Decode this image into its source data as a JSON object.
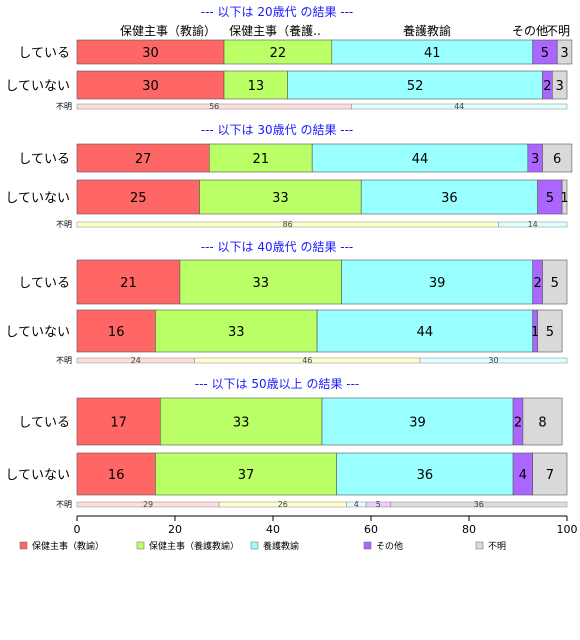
{
  "chart_data": {
    "type": "bar",
    "orientation": "horizontal",
    "stacked": true,
    "xlim": [
      0,
      100
    ],
    "x_ticks": [
      "0",
      "20",
      "40",
      "60",
      "80",
      "100"
    ],
    "category_headers": [
      "保健主事（教諭）",
      "保健主事（養護..",
      "養護教諭",
      "その他",
      "不明"
    ],
    "legend": {
      "placement": "bottom",
      "entries": [
        "保健主事（教諭）",
        "保健主事（養護教諭）",
        "養護教諭",
        "その他",
        "不明"
      ]
    },
    "colors": [
      "#ff6666",
      "#bbff66",
      "#99ffff",
      "#aa66ff",
      "#d9d9d9"
    ],
    "light_colors": [
      "#ffdddd",
      "#ffffcc",
      "#ddffff",
      "#eeccff",
      "#dddddd"
    ],
    "panels": [
      {
        "title": "--- 以下は 20歳代 の結果 ---",
        "rows": [
          {
            "label": "している",
            "values": [
              30,
              22,
              41,
              5,
              3
            ]
          },
          {
            "label": "していない",
            "values": [
              30,
              13,
              52,
              2,
              3
            ]
          }
        ],
        "unknown_label": "不明",
        "unknown_values": [
          56,
          0,
          44,
          0,
          0
        ]
      },
      {
        "title": "--- 以下は 30歳代 の結果 ---",
        "rows": [
          {
            "label": "している",
            "values": [
              27,
              21,
              44,
              3,
              6
            ]
          },
          {
            "label": "していない",
            "values": [
              25,
              33,
              36,
              5,
              1
            ]
          }
        ],
        "unknown_label": "不明",
        "unknown_values": [
          0,
          86,
          14,
          0,
          0
        ]
      },
      {
        "title": "--- 以下は 40歳代 の結果 ---",
        "rows": [
          {
            "label": "している",
            "values": [
              21,
              33,
              39,
              2,
              5
            ]
          },
          {
            "label": "していない",
            "values": [
              16,
              33,
              44,
              1,
              5
            ]
          }
        ],
        "unknown_label": "不明",
        "unknown_values": [
          24,
          46,
          30,
          0,
          0
        ]
      },
      {
        "title": "--- 以下は 50歳以上 の結果 ---",
        "rows": [
          {
            "label": "している",
            "values": [
              17,
              33,
              39,
              2,
              8
            ]
          },
          {
            "label": "していない",
            "values": [
              16,
              37,
              36,
              4,
              7
            ]
          }
        ],
        "unknown_label": "不明",
        "unknown_values": [
          29,
          26,
          4,
          5,
          36
        ]
      }
    ]
  }
}
